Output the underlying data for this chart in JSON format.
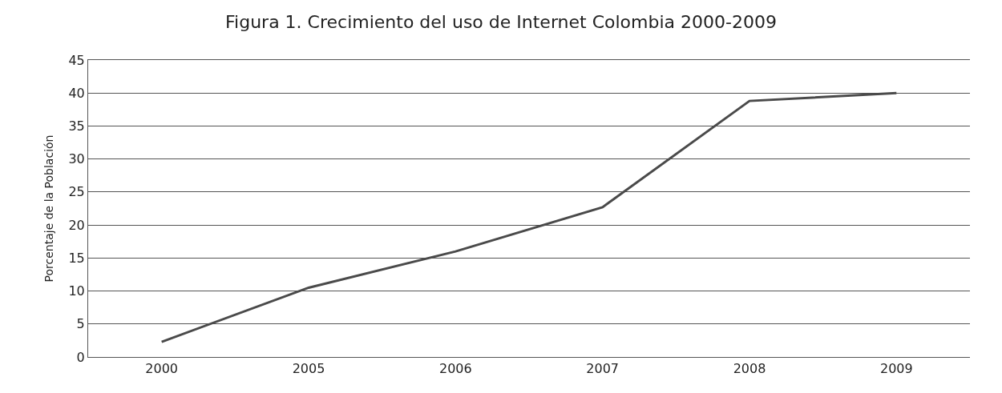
{
  "chart_data": {
    "type": "line",
    "title": "Figura 1. Crecimiento del uso de Internet Colombia 2000-2009",
    "ylabel": "Porcentaje de la Población",
    "categories": [
      "2000",
      "2005",
      "2006",
      "2007",
      "2008",
      "2009"
    ],
    "series": [
      {
        "color": "#4a4a4a",
        "values": [
          2.3,
          10.5,
          16,
          22.7,
          38.8,
          40
        ]
      }
    ],
    "ylim": [
      0,
      45
    ],
    "yticks": [
      0,
      5,
      10,
      15,
      20,
      25,
      30,
      35,
      40,
      45
    ],
    "grid": "y",
    "marker": "none",
    "line_style": "solid"
  }
}
